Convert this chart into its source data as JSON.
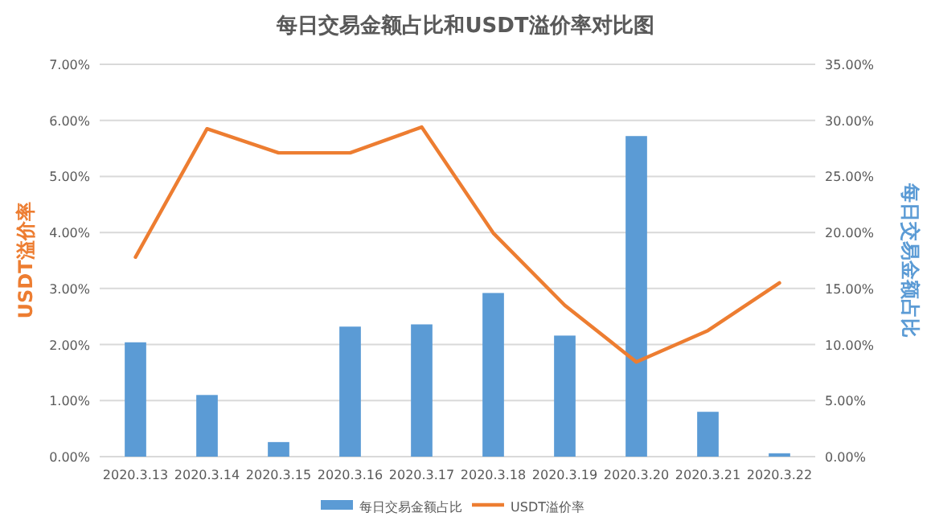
{
  "chart_data": {
    "type": "bar",
    "title": "每日交易金额占比和USDT溢价率对比图",
    "ylabel": "USDT溢价率",
    "y2label": "每日交易金额占比",
    "categories": [
      "2020.3.13",
      "2020.3.14",
      "2020.3.15",
      "2020.3.16",
      "2020.3.17",
      "2020.3.18",
      "2020.3.19",
      "2020.3.20",
      "2020.3.21",
      "2020.3.22"
    ],
    "series": [
      {
        "name": "每日交易金额占比",
        "axis": "y2",
        "color": "#5b9bd5",
        "values": [
          10.2,
          5.5,
          1.3,
          11.6,
          11.8,
          14.6,
          10.8,
          28.6,
          4.0,
          0.3
        ]
      },
      {
        "name": "USDT溢价率",
        "type": "line",
        "axis": "y",
        "color": "#ed7d31",
        "values": [
          3.56,
          5.85,
          5.42,
          5.42,
          5.88,
          3.99,
          2.7,
          1.69,
          2.25,
          3.1
        ]
      }
    ],
    "ylim": [
      0,
      7
    ],
    "yticks": [
      {
        "value": 0,
        "label": "0.00%"
      },
      {
        "value": 1,
        "label": "1.00%"
      },
      {
        "value": 2,
        "label": "2.00%"
      },
      {
        "value": 3,
        "label": "3.00%"
      },
      {
        "value": 4,
        "label": "4.00%"
      },
      {
        "value": 5,
        "label": "5.00%"
      },
      {
        "value": 6,
        "label": "6.00%"
      },
      {
        "value": 7,
        "label": "7.00%"
      }
    ],
    "y2lim": [
      0,
      35
    ],
    "y2ticks": [
      {
        "value": 0,
        "label": "0.00%"
      },
      {
        "value": 5,
        "label": "5.00%"
      },
      {
        "value": 10,
        "label": "10.00%"
      },
      {
        "value": 15,
        "label": "15.00%"
      },
      {
        "value": 20,
        "label": "20.00%"
      },
      {
        "value": 25,
        "label": "25.00%"
      },
      {
        "value": 30,
        "label": "30.00%"
      },
      {
        "value": 35,
        "label": "35.00%"
      }
    ],
    "grid": "y",
    "legend": "bottom",
    "marker": "none",
    "line_style": "solid"
  }
}
